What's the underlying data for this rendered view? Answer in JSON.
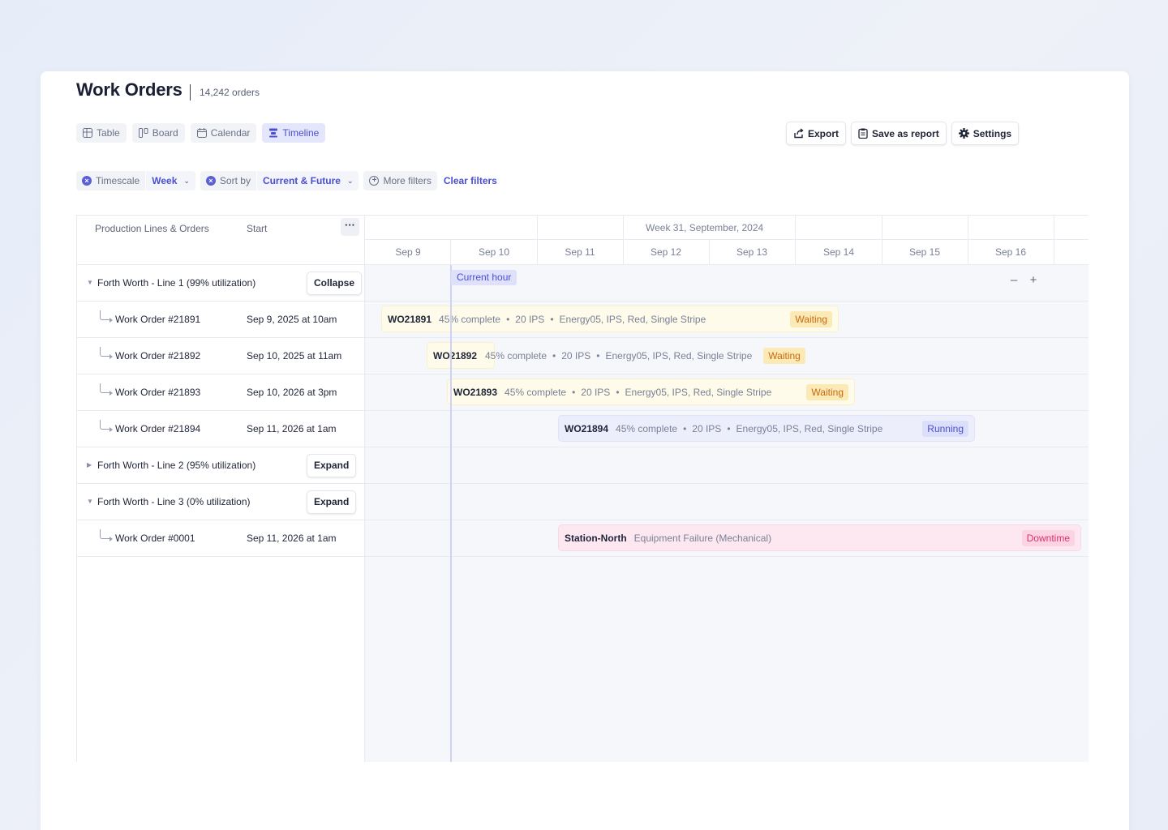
{
  "header": {
    "title": "Work Orders",
    "count": "14,242 orders"
  },
  "views": [
    {
      "label": "Table",
      "icon": "table-icon"
    },
    {
      "label": "Board",
      "icon": "board-icon"
    },
    {
      "label": "Calendar",
      "icon": "calendar-icon"
    },
    {
      "label": "Timeline",
      "icon": "timeline-icon",
      "active": true
    }
  ],
  "actions": {
    "export": "Export",
    "save_report": "Save as report",
    "settings": "Settings"
  },
  "filters": {
    "timescale_label": "Timescale",
    "timescale_value": "Week",
    "sort_label": "Sort by",
    "sort_value": "Current & Future",
    "more_filters": "More filters",
    "clear_filters": "Clear filters"
  },
  "grid": {
    "col_lines_orders": "Production Lines & Orders",
    "col_start": "Start",
    "week_title": "Week 31, September, 2024",
    "days": [
      "Sep 9",
      "Sep 10",
      "Sep 11",
      "Sep 12",
      "Sep 13",
      "Sep 14",
      "Sep 15",
      "Sep 16"
    ],
    "current_hour": "Current hour"
  },
  "groups": [
    {
      "name": "Forth Worth - Line 1 (99% utilization)",
      "button": "Collapse",
      "orders": [
        {
          "name": "Work Order #21891",
          "start": "Sep 9, 2025 at 10am",
          "bar_id": "WO21891",
          "progress": "45% complete",
          "qty": "20 IPS",
          "spec": "Energy05, IPS, Red, Single Stripe",
          "status": "Waiting"
        },
        {
          "name": "Work Order #21892",
          "start": "Sep 10, 2025 at 11am",
          "bar_id": "WO21892",
          "progress": "45% complete",
          "qty": "20 IPS",
          "spec": "Energy05, IPS, Red, Single Stripe",
          "status": "Waiting"
        },
        {
          "name": "Work Order #21893",
          "start": "Sep 10, 2026 at 3pm",
          "bar_id": "WO21893",
          "progress": "45% complete",
          "qty": "20 IPS",
          "spec": "Energy05, IPS, Red, Single Stripe",
          "status": "Waiting"
        },
        {
          "name": "Work Order #21894",
          "start": "Sep 11, 2026 at 1am",
          "bar_id": "WO21894",
          "progress": "45% complete",
          "qty": "20 IPS",
          "spec": "Energy05, IPS, Red, Single Stripe",
          "status": "Running"
        }
      ]
    },
    {
      "name": "Forth Worth - Line 2 (95% utilization)",
      "button": "Expand"
    },
    {
      "name": "Forth Worth - Line 3 (0% utilization)",
      "button": "Expand",
      "orders": [
        {
          "name": "Work Order #0001",
          "start": "Sep 11, 2026 at 1am",
          "bar_id": "Station-North",
          "reason": "Equipment Failure (Mechanical)",
          "status": "Downtime"
        }
      ]
    }
  ],
  "colors": {
    "accent": "#4a4fd1",
    "waiting": "#c96a12",
    "running": "#4a4fd1",
    "downtime": "#d8346e"
  }
}
